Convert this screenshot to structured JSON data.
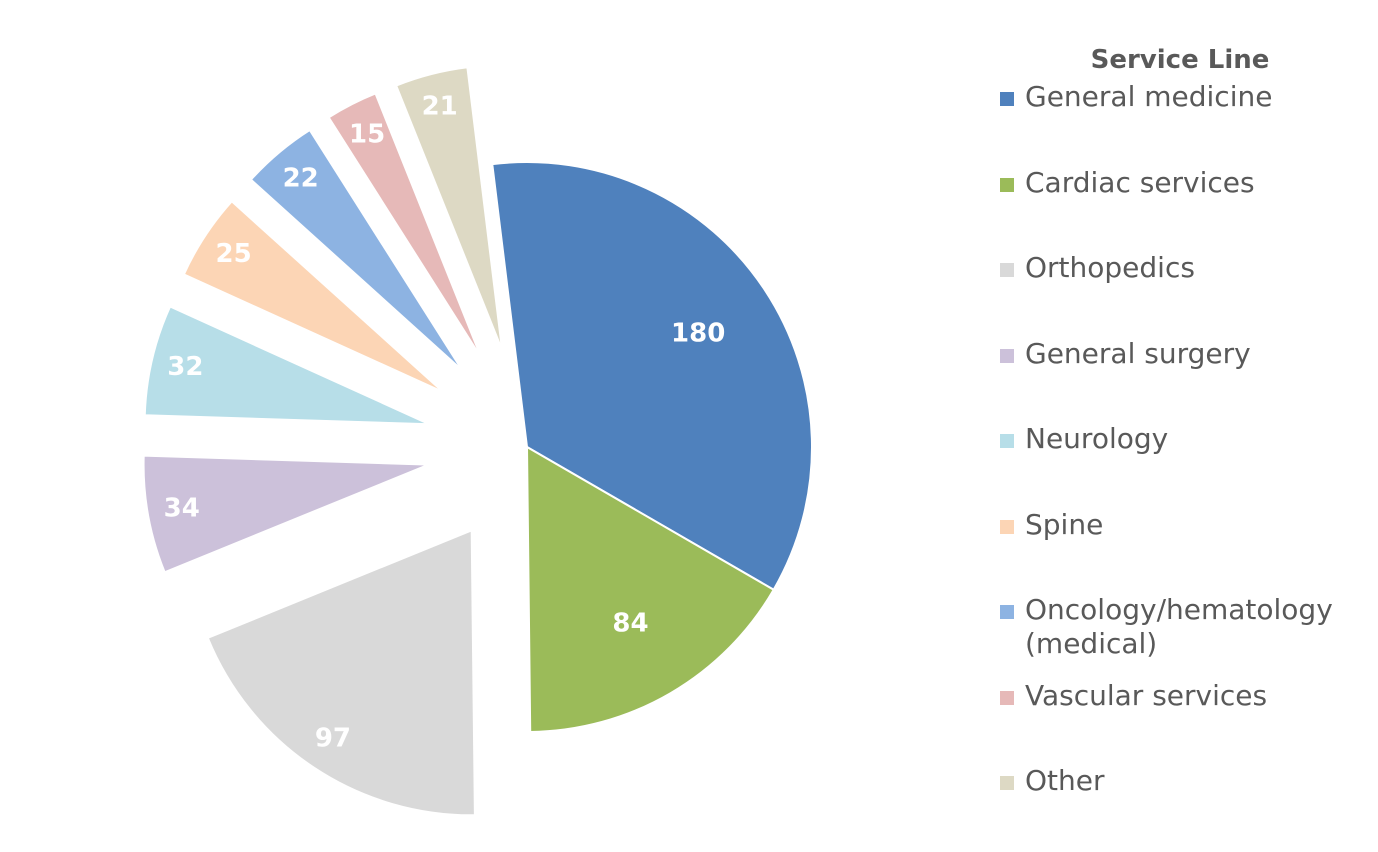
{
  "chart_data": {
    "type": "pie",
    "legend_title": "Service Line",
    "categories": [
      "General medicine",
      "Cardiac services",
      "Orthopedics",
      "General surgery",
      "Neurology",
      "Spine",
      "Oncology/hematology (medical)",
      "Vascular services",
      "Other"
    ],
    "values": [
      180,
      84,
      97,
      34,
      32,
      25,
      22,
      15,
      21
    ],
    "colors": [
      "#4f81bd",
      "#9bbb59",
      "#d9d9d9",
      "#ccc1da",
      "#b7dee8",
      "#fcd5b5",
      "#8db3e2",
      "#e6b9b8",
      "#ddd9c4"
    ],
    "legend": "right"
  }
}
